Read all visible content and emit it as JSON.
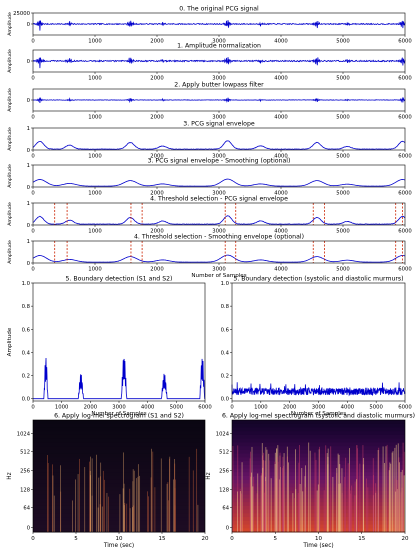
{
  "colors": {
    "signal": "#0000cc",
    "threshold": "#cc2200",
    "axis": "#000000"
  },
  "chart_data": [
    {
      "id": "p0",
      "type": "line",
      "title": "0. The original PCG signal",
      "xlabel": "",
      "ylabel": "Amplitude",
      "xlim": [
        0,
        6000
      ],
      "ylim": [
        -25000,
        25000
      ],
      "xticks": [
        0,
        1000,
        2000,
        3000,
        4000,
        5000,
        6000
      ],
      "yticks": [
        0,
        25000
      ],
      "ytick_labels": [
        "0",
        "25000"
      ],
      "series": [
        {
          "kind": "osc",
          "base": 0,
          "noise": 1200,
          "peaks": [
            [
              110,
              16000
            ],
            [
              590,
              6000
            ],
            [
              1570,
              12000
            ],
            [
              2090,
              5000
            ],
            [
              3140,
              14000
            ],
            [
              3670,
              5000
            ],
            [
              4580,
              12000
            ],
            [
              5070,
              4000
            ],
            [
              5960,
              13000
            ]
          ]
        }
      ]
    },
    {
      "id": "p1",
      "type": "line",
      "title": "1. Amplitude normalization",
      "xlabel": "",
      "ylabel": "Amplitude",
      "xlim": [
        0,
        6000
      ],
      "ylim": [
        -1,
        1
      ],
      "xticks": [
        0,
        1000,
        2000,
        3000,
        4000,
        5000,
        6000
      ],
      "yticks": [
        0
      ],
      "ytick_labels": [
        "0"
      ],
      "series": [
        {
          "kind": "osc",
          "base": 0,
          "noise": 0.06,
          "peaks": [
            [
              110,
              0.65
            ],
            [
              590,
              0.25
            ],
            [
              1570,
              0.5
            ],
            [
              2090,
              0.22
            ],
            [
              3140,
              0.6
            ],
            [
              3670,
              0.2
            ],
            [
              4580,
              0.5
            ],
            [
              5070,
              0.18
            ],
            [
              5960,
              0.55
            ]
          ]
        }
      ]
    },
    {
      "id": "p2",
      "type": "line",
      "title": "2. Apply butter lowpass filter",
      "xlabel": "",
      "ylabel": "Amplitude",
      "xlim": [
        0,
        6000
      ],
      "ylim": [
        -1,
        1
      ],
      "xticks": [
        0,
        1000,
        2000,
        3000,
        4000,
        5000,
        6000
      ],
      "yticks": [
        0
      ],
      "ytick_labels": [
        "0"
      ],
      "series": [
        {
          "kind": "osc",
          "base": 0,
          "noise": 0.02,
          "peaks": [
            [
              110,
              0.3
            ],
            [
              590,
              0.12
            ],
            [
              1570,
              0.28
            ],
            [
              2090,
              0.1
            ],
            [
              3140,
              0.3
            ],
            [
              3670,
              0.1
            ],
            [
              4580,
              0.25
            ],
            [
              5070,
              0.08
            ],
            [
              5960,
              0.28
            ]
          ]
        }
      ]
    },
    {
      "id": "p3",
      "type": "line",
      "title": "3. PCG signal envelope",
      "xlabel": "",
      "ylabel": "Amplitude",
      "xlim": [
        0,
        6000
      ],
      "ylim": [
        0,
        1
      ],
      "xticks": [
        0,
        1000,
        2000,
        3000,
        4000,
        5000,
        6000
      ],
      "yticks": [
        0,
        1
      ],
      "ytick_labels": [
        "0",
        "1"
      ],
      "series": [
        {
          "kind": "env",
          "base": 0.04,
          "noise": 0.01,
          "width": 90,
          "peaks": [
            [
              110,
              0.35
            ],
            [
              590,
              0.18
            ],
            [
              1570,
              0.3
            ],
            [
              2090,
              0.14
            ],
            [
              3140,
              0.38
            ],
            [
              3670,
              0.15
            ],
            [
              4580,
              0.3
            ],
            [
              5070,
              0.12
            ],
            [
              5960,
              0.35
            ]
          ]
        }
      ]
    },
    {
      "id": "p4",
      "type": "line",
      "title": "3. PCG signal envelope - Smoothing (optional)",
      "xlabel": "",
      "ylabel": "Amplitude",
      "xlim": [
        0,
        6000
      ],
      "ylim": [
        0,
        1
      ],
      "xticks": [
        0,
        1000,
        2000,
        3000,
        4000,
        5000,
        6000
      ],
      "yticks": [
        0,
        1
      ],
      "ytick_labels": [
        "0",
        "1"
      ],
      "series": [
        {
          "kind": "env",
          "base": 0.04,
          "noise": 0.002,
          "width": 150,
          "peaks": [
            [
              110,
              0.3
            ],
            [
              590,
              0.12
            ],
            [
              1570,
              0.25
            ],
            [
              2090,
              0.1
            ],
            [
              3140,
              0.32
            ],
            [
              3670,
              0.1
            ],
            [
              4580,
              0.25
            ],
            [
              5070,
              0.09
            ],
            [
              5960,
              0.3
            ]
          ]
        }
      ]
    },
    {
      "id": "p5",
      "type": "line",
      "title": "4. Threshold selection - PCG signal envelope",
      "xlabel": "",
      "ylabel": "Amplitude",
      "xlim": [
        0,
        6000
      ],
      "ylim": [
        0,
        1
      ],
      "xticks": [
        0,
        1000,
        2000,
        3000,
        4000,
        5000,
        6000
      ],
      "yticks": [
        0,
        1
      ],
      "ytick_labels": [
        "0",
        "1"
      ],
      "series": [
        {
          "kind": "env",
          "base": 0.04,
          "noise": 0.01,
          "width": 90,
          "peaks": [
            [
              110,
              0.35
            ],
            [
              590,
              0.18
            ],
            [
              1570,
              0.3
            ],
            [
              2090,
              0.14
            ],
            [
              3140,
              0.38
            ],
            [
              3670,
              0.15
            ],
            [
              4580,
              0.3
            ],
            [
              5070,
              0.12
            ],
            [
              5960,
              0.35
            ]
          ]
        }
      ],
      "threshold_lines": [
        350,
        550,
        1580,
        1760,
        3100,
        3270,
        4520,
        4700,
        5850,
        5960
      ]
    },
    {
      "id": "p6",
      "type": "line",
      "title": "4. Threshold selection - Smoothing envelope (optional)",
      "xlabel": "Number of Samples",
      "ylabel": "Amplitude",
      "xlim": [
        0,
        6000
      ],
      "ylim": [
        0,
        1
      ],
      "xticks": [
        0,
        1000,
        2000,
        3000,
        4000,
        5000,
        6000
      ],
      "yticks": [
        0,
        1
      ],
      "ytick_labels": [
        "0",
        "1"
      ],
      "series": [
        {
          "kind": "env",
          "base": 0.04,
          "noise": 0.002,
          "width": 150,
          "peaks": [
            [
              110,
              0.3
            ],
            [
              590,
              0.12
            ],
            [
              1570,
              0.25
            ],
            [
              2090,
              0.1
            ],
            [
              3140,
              0.32
            ],
            [
              3670,
              0.1
            ],
            [
              4580,
              0.25
            ],
            [
              5070,
              0.09
            ],
            [
              5960,
              0.3
            ]
          ]
        }
      ],
      "threshold_lines": [
        350,
        550,
        1580,
        1760,
        3100,
        3270,
        4520,
        4700,
        5850,
        5960
      ]
    },
    {
      "id": "p7",
      "type": "line",
      "title": "5. Boundary detection (S1 and S2)",
      "xlabel": "Number of Samples",
      "ylabel": "Amplitude",
      "xlim": [
        0,
        6000
      ],
      "ylim": [
        -0.02,
        1.0
      ],
      "xticks": [
        0,
        1000,
        2000,
        3000,
        4000,
        5000,
        6000
      ],
      "yticks": [
        0,
        0.2,
        0.4,
        0.6,
        0.8,
        1.0
      ],
      "ytick_labels": [
        "0.0",
        "0.2",
        "0.4",
        "0.6",
        "0.8",
        "1.0"
      ],
      "series": [
        {
          "kind": "bursts",
          "bursts": [
            [
              380,
              520,
              0.37
            ],
            [
              1580,
              1760,
              0.22
            ],
            [
              3080,
              3270,
              0.38
            ],
            [
              4480,
              4680,
              0.22
            ],
            [
              5820,
              5990,
              0.37
            ]
          ]
        }
      ]
    },
    {
      "id": "p8",
      "type": "line",
      "title": "5. Boundary detection (systolic and diastolic murmurs)",
      "xlabel": "Number of Samples",
      "ylabel": "",
      "xlim": [
        0,
        6000
      ],
      "ylim": [
        -0.02,
        1.0
      ],
      "xticks": [
        0,
        1000,
        2000,
        3000,
        4000,
        5000,
        6000
      ],
      "yticks": [
        0,
        0.2,
        0.4,
        0.6,
        0.8,
        1.0
      ],
      "ytick_labels": [
        "0.0",
        "0.2",
        "0.4",
        "0.6",
        "0.8",
        "1.0"
      ],
      "series": [
        {
          "kind": "murmur",
          "level": 0.05,
          "amp": 0.04
        }
      ]
    },
    {
      "id": "p9",
      "type": "heatmap",
      "title": "6. Apply log-mel spectrogram (S1 and S2)",
      "xlabel": "Time (sec)",
      "ylabel": "Hz",
      "xlim": [
        0,
        20
      ],
      "xticks": [
        0,
        5,
        10,
        15,
        20
      ],
      "yticks": [
        "0",
        "64",
        "128",
        "256",
        "512",
        "1024"
      ],
      "density": "sparse"
    },
    {
      "id": "p10",
      "type": "heatmap",
      "title": "6. Apply log-mel spectrogram (systolic and diastolic murmurs)",
      "xlabel": "Time (sec)",
      "ylabel": "Hz",
      "xlim": [
        0,
        20
      ],
      "xticks": [
        0,
        5,
        10,
        15,
        20
      ],
      "yticks": [
        "0",
        "64",
        "128",
        "256",
        "512",
        "1024"
      ],
      "density": "dense"
    }
  ]
}
